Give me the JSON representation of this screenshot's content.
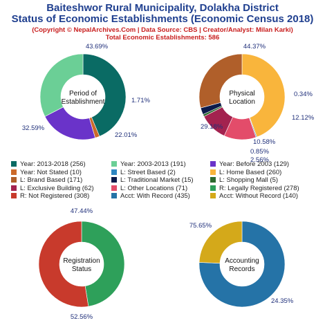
{
  "header": {
    "title_line1": "Baiteshwor Rural Municipality, Dolakha District",
    "title_line2": "Status of Economic Establishments (Economic Census 2018)",
    "subtitle": "(Copyright © NepalArchives.Com | Data Source: CBS | Creator/Analyst: Milan Karki)",
    "total": "Total Economic Establishments: 586"
  },
  "legend": [
    {
      "label": "Year: 2013-2018 (256)",
      "color": "#0a6b64"
    },
    {
      "label": "Year: 2003-2013 (191)",
      "color": "#6bcf96"
    },
    {
      "label": "Year: Before 2003 (129)",
      "color": "#6a33c9"
    },
    {
      "label": "Year: Not Stated (10)",
      "color": "#cc6a2a"
    },
    {
      "label": "L: Street Based (2)",
      "color": "#2e86c1"
    },
    {
      "label": "L: Home Based (260)",
      "color": "#f9b53c"
    },
    {
      "label": "L: Brand Based (171)",
      "color": "#b05f2a"
    },
    {
      "label": "L: Traditional Market (15)",
      "color": "#0b1a4a"
    },
    {
      "label": "L: Shopping Mall (5)",
      "color": "#2d6a2f"
    },
    {
      "label": "L: Exclusive Building (62)",
      "color": "#a3224f"
    },
    {
      "label": "L: Other Locations (71)",
      "color": "#e34c6a"
    },
    {
      "label": "R: Legally Registered (278)",
      "color": "#2ea05a"
    },
    {
      "label": "R: Not Registered (308)",
      "color": "#c83a2c"
    },
    {
      "label": "Acct: With Record (435)",
      "color": "#2573a7"
    },
    {
      "label": "Acct: Without Record (140)",
      "color": "#d4a91a"
    }
  ],
  "chart_data": [
    {
      "type": "pie",
      "center_label": [
        "Period of",
        "Establishment"
      ],
      "slices": [
        {
          "name": "Year: 2013-2018",
          "value": 256,
          "percent_label": "43.69%",
          "color": "#0a6b64"
        },
        {
          "name": "Year: Not Stated",
          "value": 10,
          "percent_label": "1.71%",
          "color": "#cc6a2a"
        },
        {
          "name": "Year: Before 2003",
          "value": 129,
          "percent_label": "22.01%",
          "color": "#6a33c9"
        },
        {
          "name": "Year: 2003-2013",
          "value": 191,
          "percent_label": "32.59%",
          "color": "#6bcf96"
        }
      ]
    },
    {
      "type": "pie",
      "center_label": [
        "Physical",
        "Location"
      ],
      "slices": [
        {
          "name": "L: Home Based",
          "value": 260,
          "percent_label": "44.37%",
          "color": "#f9b53c"
        },
        {
          "name": "L: Street Based",
          "value": 2,
          "percent_label": "0.34%",
          "color": "#2e86c1"
        },
        {
          "name": "L: Other Locations",
          "value": 71,
          "percent_label": "12.12%",
          "color": "#e34c6a"
        },
        {
          "name": "L: Exclusive Building",
          "value": 62,
          "percent_label": "10.58%",
          "color": "#a3224f"
        },
        {
          "name": "L: Shopping Mall",
          "value": 5,
          "percent_label": "0.85%",
          "color": "#2d6a2f"
        },
        {
          "name": "L: Traditional Market",
          "value": 15,
          "percent_label": "2.56%",
          "color": "#0b1a4a"
        },
        {
          "name": "L: Brand Based",
          "value": 171,
          "percent_label": "29.18%",
          "color": "#b05f2a"
        }
      ]
    },
    {
      "type": "pie",
      "center_label": [
        "Registration",
        "Status"
      ],
      "slices": [
        {
          "name": "R: Legally Registered",
          "value": 278,
          "percent_label": "47.44%",
          "color": "#2ea05a"
        },
        {
          "name": "R: Not Registered",
          "value": 308,
          "percent_label": "52.56%",
          "color": "#c83a2c"
        }
      ]
    },
    {
      "type": "pie",
      "center_label": [
        "Accounting",
        "Records"
      ],
      "slices": [
        {
          "name": "Acct: With Record",
          "value": 435,
          "percent_label": "75.65%",
          "color": "#2573a7"
        },
        {
          "name": "Acct: Without Record",
          "value": 140,
          "percent_label": "24.35%",
          "color": "#d4a91a"
        }
      ]
    }
  ]
}
